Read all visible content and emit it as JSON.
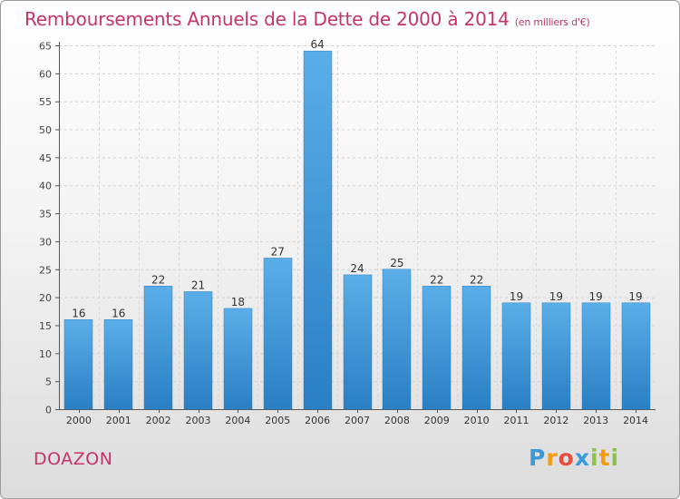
{
  "chart_data": {
    "type": "bar",
    "title": "Remboursements Annuels de la Dette de 2000 à 2014",
    "subtitle": "(en milliers d'€)",
    "categories": [
      "2000",
      "2001",
      "2002",
      "2003",
      "2004",
      "2005",
      "2006",
      "2007",
      "2008",
      "2009",
      "2010",
      "2011",
      "2012",
      "2013",
      "2014"
    ],
    "values": [
      16,
      16,
      22,
      21,
      18,
      27,
      64,
      24,
      25,
      22,
      22,
      19,
      19,
      19,
      19
    ],
    "ylim": [
      0,
      65
    ],
    "yticks": [
      0,
      5,
      10,
      15,
      20,
      25,
      30,
      35,
      40,
      45,
      50,
      55,
      60,
      65
    ],
    "grid": true,
    "bar_color_top": "#5aaee8",
    "bar_color_bottom": "#2a7fc4"
  },
  "location": "DOAZON",
  "brand": {
    "name": "Proxiti",
    "letters": [
      "P",
      "r",
      "o",
      "x",
      "i",
      "t",
      "i"
    ],
    "colors": [
      "#3a9ad9",
      "#f39c12",
      "#e74c3c",
      "#3a9ad9",
      "#8bc34a",
      "#f39c12",
      "#8bc34a"
    ]
  },
  "colors": {
    "accent": "#c4336a"
  }
}
